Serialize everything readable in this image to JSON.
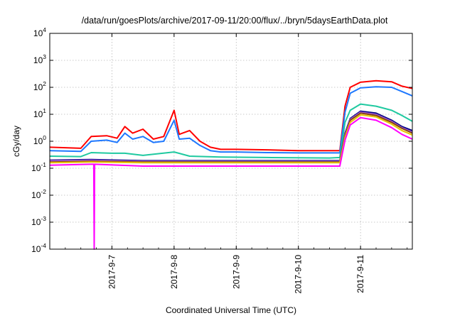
{
  "chart_data": {
    "type": "line",
    "title": "/data/run/goesPlots/archive/2017-09-11/20:00/flux/../bryn/5daysEarthData.plot",
    "xlabel": "Coordinated Universal Time (UTC)",
    "ylabel": "cGy/day",
    "y_scale": "log",
    "ylim": [
      0.0001,
      10000
    ],
    "y_ticks": [
      {
        "base": "10",
        "exp": "-4",
        "value": 0.0001
      },
      {
        "base": "10",
        "exp": "-3",
        "value": 0.001
      },
      {
        "base": "10",
        "exp": "-2",
        "value": 0.01
      },
      {
        "base": "10",
        "exp": "-1",
        "value": 0.1
      },
      {
        "base": "10",
        "exp": "0",
        "value": 1
      },
      {
        "base": "10",
        "exp": "1",
        "value": 10
      },
      {
        "base": "10",
        "exp": "2",
        "value": 100
      },
      {
        "base": "10",
        "exp": "3",
        "value": 1000
      },
      {
        "base": "10",
        "exp": "4",
        "value": 10000
      }
    ],
    "x_range": [
      "2017-09-06T00:00",
      "2017-09-11T20:00"
    ],
    "x_ticks": [
      "2017-9-7",
      "2017-9-8",
      "2017-9-9",
      "2017-9-10",
      "2017-9-11"
    ],
    "grid": true,
    "legend": "none",
    "series": [
      {
        "color": "#ff0000",
        "points": [
          [
            "2017-09-06T00:00",
            0.6
          ],
          [
            "2017-09-06T12:00",
            0.55
          ],
          [
            "2017-09-06T16:00",
            1.5
          ],
          [
            "2017-09-06T22:00",
            1.6
          ],
          [
            "2017-09-07T02:00",
            1.3
          ],
          [
            "2017-09-07T05:00",
            3.5
          ],
          [
            "2017-09-07T08:00",
            2.0
          ],
          [
            "2017-09-07T12:00",
            2.8
          ],
          [
            "2017-09-07T16:00",
            1.2
          ],
          [
            "2017-09-07T20:00",
            1.5
          ],
          [
            "2017-09-08T00:00",
            14
          ],
          [
            "2017-09-08T02:00",
            1.8
          ],
          [
            "2017-09-08T06:00",
            2.5
          ],
          [
            "2017-09-08T10:00",
            1.0
          ],
          [
            "2017-09-08T14:00",
            0.6
          ],
          [
            "2017-09-08T18:00",
            0.5
          ],
          [
            "2017-09-09T00:00",
            0.5
          ],
          [
            "2017-09-09T12:00",
            0.48
          ],
          [
            "2017-09-10T00:00",
            0.45
          ],
          [
            "2017-09-10T12:00",
            0.45
          ],
          [
            "2017-09-10T16:00",
            0.45
          ],
          [
            "2017-09-10T18:00",
            20
          ],
          [
            "2017-09-10T20:00",
            100
          ],
          [
            "2017-09-11T00:00",
            155
          ],
          [
            "2017-09-11T06:00",
            175
          ],
          [
            "2017-09-11T12:00",
            160
          ],
          [
            "2017-09-11T16:00",
            110
          ],
          [
            "2017-09-11T20:00",
            90
          ]
        ]
      },
      {
        "color": "#1e78ff",
        "points": [
          [
            "2017-09-06T00:00",
            0.45
          ],
          [
            "2017-09-06T12:00",
            0.42
          ],
          [
            "2017-09-06T16:00",
            1.0
          ],
          [
            "2017-09-06T22:00",
            1.1
          ],
          [
            "2017-09-07T02:00",
            0.9
          ],
          [
            "2017-09-07T05:00",
            2.0
          ],
          [
            "2017-09-07T08:00",
            1.2
          ],
          [
            "2017-09-07T12:00",
            1.5
          ],
          [
            "2017-09-07T16:00",
            0.9
          ],
          [
            "2017-09-07T20:00",
            1.0
          ],
          [
            "2017-09-08T00:00",
            6
          ],
          [
            "2017-09-08T02:00",
            1.2
          ],
          [
            "2017-09-08T06:00",
            1.3
          ],
          [
            "2017-09-08T10:00",
            0.7
          ],
          [
            "2017-09-08T14:00",
            0.45
          ],
          [
            "2017-09-08T18:00",
            0.4
          ],
          [
            "2017-09-09T00:00",
            0.4
          ],
          [
            "2017-09-09T12:00",
            0.38
          ],
          [
            "2017-09-10T00:00",
            0.37
          ],
          [
            "2017-09-10T12:00",
            0.37
          ],
          [
            "2017-09-10T16:00",
            0.37
          ],
          [
            "2017-09-10T18:00",
            12
          ],
          [
            "2017-09-10T20:00",
            60
          ],
          [
            "2017-09-11T00:00",
            95
          ],
          [
            "2017-09-11T06:00",
            105
          ],
          [
            "2017-09-11T12:00",
            100
          ],
          [
            "2017-09-11T16:00",
            70
          ],
          [
            "2017-09-11T20:00",
            48
          ]
        ]
      },
      {
        "color": "#1fc9a0",
        "points": [
          [
            "2017-09-06T00:00",
            0.28
          ],
          [
            "2017-09-06T12:00",
            0.27
          ],
          [
            "2017-09-06T16:00",
            0.38
          ],
          [
            "2017-09-07T00:00",
            0.36
          ],
          [
            "2017-09-07T05:00",
            0.36
          ],
          [
            "2017-09-07T12:00",
            0.3
          ],
          [
            "2017-09-08T00:00",
            0.4
          ],
          [
            "2017-09-08T06:00",
            0.28
          ],
          [
            "2017-09-08T18:00",
            0.26
          ],
          [
            "2017-09-09T12:00",
            0.25
          ],
          [
            "2017-09-10T12:00",
            0.24
          ],
          [
            "2017-09-10T16:00",
            0.25
          ],
          [
            "2017-09-10T18:00",
            5
          ],
          [
            "2017-09-10T20:00",
            14
          ],
          [
            "2017-09-11T00:00",
            24
          ],
          [
            "2017-09-11T06:00",
            20
          ],
          [
            "2017-09-11T12:00",
            14
          ],
          [
            "2017-09-11T16:00",
            9
          ],
          [
            "2017-09-11T20:00",
            5.5
          ]
        ]
      },
      {
        "color": "#000080",
        "points": [
          [
            "2017-09-06T00:00",
            0.2
          ],
          [
            "2017-09-06T16:00",
            0.21
          ],
          [
            "2017-09-07T12:00",
            0.19
          ],
          [
            "2017-09-08T12:00",
            0.19
          ],
          [
            "2017-09-09T12:00",
            0.19
          ],
          [
            "2017-09-10T16:00",
            0.19
          ],
          [
            "2017-09-10T18:00",
            2
          ],
          [
            "2017-09-10T20:00",
            7
          ],
          [
            "2017-09-11T00:00",
            13
          ],
          [
            "2017-09-11T06:00",
            11
          ],
          [
            "2017-09-11T12:00",
            6
          ],
          [
            "2017-09-11T16:00",
            3.5
          ],
          [
            "2017-09-11T20:00",
            2.5
          ]
        ]
      },
      {
        "color": "#9b59d0",
        "points": [
          [
            "2017-09-06T00:00",
            0.19
          ],
          [
            "2017-09-06T16:00",
            0.2
          ],
          [
            "2017-09-07T12:00",
            0.18
          ],
          [
            "2017-09-08T12:00",
            0.18
          ],
          [
            "2017-09-09T12:00",
            0.18
          ],
          [
            "2017-09-10T16:00",
            0.18
          ],
          [
            "2017-09-10T18:00",
            1.8
          ],
          [
            "2017-09-10T20:00",
            6.5
          ],
          [
            "2017-09-11T00:00",
            12
          ],
          [
            "2017-09-11T06:00",
            10
          ],
          [
            "2017-09-11T12:00",
            5.5
          ],
          [
            "2017-09-11T16:00",
            3.2
          ],
          [
            "2017-09-11T20:00",
            2.2
          ]
        ]
      },
      {
        "color": "#8b4513",
        "points": [
          [
            "2017-09-06T00:00",
            0.17
          ],
          [
            "2017-09-06T16:00",
            0.18
          ],
          [
            "2017-09-07T12:00",
            0.17
          ],
          [
            "2017-09-08T12:00",
            0.17
          ],
          [
            "2017-09-09T12:00",
            0.17
          ],
          [
            "2017-09-10T16:00",
            0.17
          ],
          [
            "2017-09-10T18:00",
            1.6
          ],
          [
            "2017-09-10T20:00",
            6
          ],
          [
            "2017-09-11T00:00",
            11
          ],
          [
            "2017-09-11T06:00",
            9
          ],
          [
            "2017-09-11T12:00",
            5
          ],
          [
            "2017-09-11T16:00",
            3
          ],
          [
            "2017-09-11T20:00",
            2
          ]
        ]
      },
      {
        "color": "#e8c400",
        "points": [
          [
            "2017-09-06T00:00",
            0.16
          ],
          [
            "2017-09-06T16:00",
            0.17
          ],
          [
            "2017-09-07T12:00",
            0.16
          ],
          [
            "2017-09-08T12:00",
            0.16
          ],
          [
            "2017-09-09T12:00",
            0.16
          ],
          [
            "2017-09-10T16:00",
            0.16
          ],
          [
            "2017-09-10T18:00",
            1.4
          ],
          [
            "2017-09-10T20:00",
            5
          ],
          [
            "2017-09-11T00:00",
            9.5
          ],
          [
            "2017-09-11T06:00",
            8
          ],
          [
            "2017-09-11T12:00",
            4.3
          ],
          [
            "2017-09-11T16:00",
            2.5
          ],
          [
            "2017-09-11T20:00",
            1.7
          ]
        ]
      },
      {
        "color": "#ff00ff",
        "points": [
          [
            "2017-09-06T00:00",
            0.13
          ],
          [
            "2017-09-06T16:00",
            0.14
          ],
          [
            "2017-09-06T17:00",
            0.14
          ],
          [
            "2017-09-06T17:10",
            0.0001
          ],
          [
            "2017-09-06T17:20",
            0.14
          ],
          [
            "2017-09-07T12:00",
            0.12
          ],
          [
            "2017-09-08T12:00",
            0.12
          ],
          [
            "2017-09-09T12:00",
            0.12
          ],
          [
            "2017-09-10T16:00",
            0.12
          ],
          [
            "2017-09-10T18:00",
            1.1
          ],
          [
            "2017-09-10T20:00",
            4
          ],
          [
            "2017-09-11T00:00",
            7.5
          ],
          [
            "2017-09-11T06:00",
            6
          ],
          [
            "2017-09-11T12:00",
            3.2
          ],
          [
            "2017-09-11T16:00",
            1.8
          ],
          [
            "2017-09-11T20:00",
            1.2
          ]
        ]
      }
    ]
  }
}
